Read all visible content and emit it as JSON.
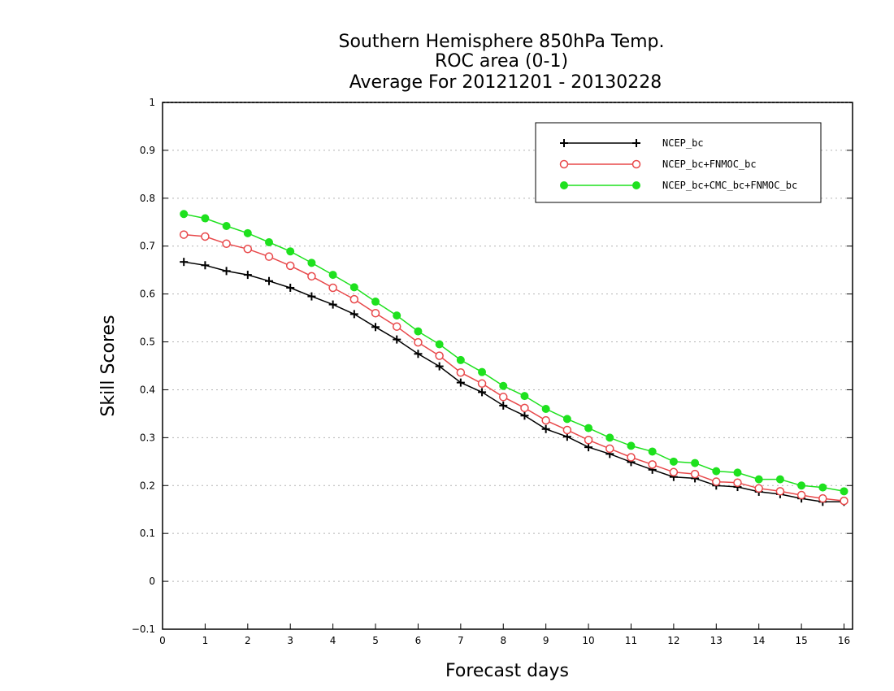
{
  "chart_data": {
    "type": "line",
    "title": [
      "Southern Hemisphere 850hPa Temp.",
      "ROC area (0-1)",
      "Average For 20121201 - 20130228"
    ],
    "xlabel": "Forecast days",
    "ylabel": "Skill Scores",
    "xlim": [
      0,
      16.2
    ],
    "ylim": [
      -0.1,
      1
    ],
    "xticks": [
      "0",
      "1",
      "2",
      "3",
      "4",
      "5",
      "6",
      "7",
      "8",
      "9",
      "10",
      "11",
      "12",
      "13",
      "14",
      "15",
      "16"
    ],
    "yticks": [
      "−0.1",
      "0",
      "0.1",
      "0.2",
      "0.3",
      "0.4",
      "0.5",
      "0.6",
      "0.7",
      "0.8",
      "0.9",
      "1"
    ],
    "grid": true,
    "legend_position": "top-right",
    "x": [
      0.5,
      1,
      1.5,
      2,
      2.5,
      3,
      3.5,
      4,
      4.5,
      5,
      5.5,
      6,
      6.5,
      7,
      7.5,
      8,
      8.5,
      9,
      9.5,
      10,
      10.5,
      11,
      11.5,
      12,
      12.5,
      13,
      13.5,
      14,
      14.5,
      15,
      15.5,
      16
    ],
    "series": [
      {
        "name": "NCEP_bc",
        "color": "#000000",
        "marker": "plus",
        "values": [
          0.667,
          0.66,
          0.648,
          0.64,
          0.627,
          0.613,
          0.595,
          0.578,
          0.558,
          0.531,
          0.505,
          0.475,
          0.449,
          0.415,
          0.395,
          0.367,
          0.346,
          0.318,
          0.302,
          0.28,
          0.266,
          0.249,
          0.233,
          0.218,
          0.215,
          0.2,
          0.197,
          0.187,
          0.182,
          0.173,
          0.166,
          0.166
        ]
      },
      {
        "name": "NCEP_bc+FNMOC_bc",
        "color": "#e8484a",
        "marker": "open-circle",
        "values": [
          0.724,
          0.72,
          0.705,
          0.694,
          0.678,
          0.659,
          0.637,
          0.613,
          0.589,
          0.56,
          0.532,
          0.499,
          0.471,
          0.436,
          0.413,
          0.385,
          0.362,
          0.336,
          0.316,
          0.295,
          0.277,
          0.259,
          0.244,
          0.228,
          0.224,
          0.208,
          0.206,
          0.194,
          0.188,
          0.18,
          0.173,
          0.168
        ]
      },
      {
        "name": "NCEP_bc+CMC_bc+FNMOC_bc",
        "color": "#1ee11e",
        "marker": "filled-circle",
        "values": [
          0.767,
          0.758,
          0.742,
          0.727,
          0.708,
          0.689,
          0.665,
          0.64,
          0.614,
          0.584,
          0.555,
          0.522,
          0.495,
          0.462,
          0.437,
          0.408,
          0.387,
          0.36,
          0.339,
          0.32,
          0.3,
          0.283,
          0.271,
          0.25,
          0.247,
          0.23,
          0.227,
          0.213,
          0.213,
          0.2,
          0.196,
          0.188
        ]
      }
    ]
  }
}
